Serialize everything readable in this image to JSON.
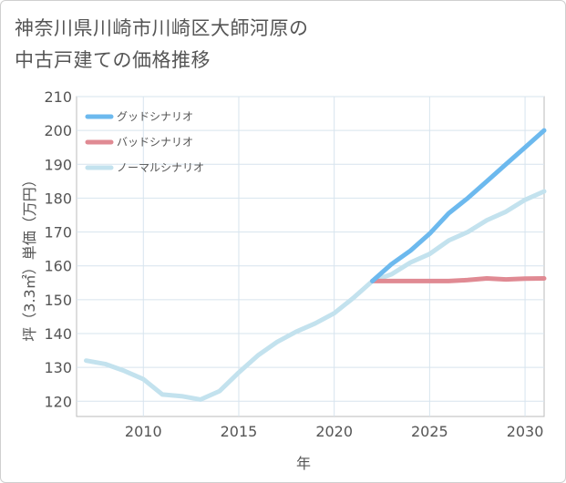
{
  "chart_title_line1": "神奈川県川崎市川崎区大師河原の",
  "chart_title_line2": "中古戸建ての価格推移",
  "chart_data": {
    "type": "line",
    "title": "神奈川県川崎市川崎区大師河原の中古戸建ての価格推移",
    "xlabel": "年",
    "ylabel": "坪（3.3㎡）単価（万円）",
    "xlim": [
      2006.5,
      2031
    ],
    "ylim": [
      115.5,
      210
    ],
    "xticks": [
      2010,
      2015,
      2020,
      2025,
      2030
    ],
    "yticks": [
      120,
      130,
      140,
      150,
      160,
      170,
      180,
      190,
      200,
      210
    ],
    "grid": true,
    "legend_position": "top-left",
    "series": [
      {
        "name": "グッドシナリオ",
        "color": "#6cb9ee",
        "x": [
          2022,
          2023,
          2024,
          2025,
          2026,
          2027,
          2028,
          2029,
          2030,
          2031
        ],
        "values": [
          155.5,
          160.5,
          164.5,
          169.5,
          175.5,
          180,
          185,
          190,
          195,
          200
        ]
      },
      {
        "name": "バッドシナリオ",
        "color": "#e08a93",
        "x": [
          2022,
          2023,
          2024,
          2025,
          2026,
          2027,
          2028,
          2029,
          2030,
          2031
        ],
        "values": [
          155.5,
          155.5,
          155.5,
          155.5,
          155.5,
          155.8,
          156.3,
          156.0,
          156.2,
          156.3
        ]
      },
      {
        "name": "ノーマルシナリオ",
        "color": "#c3e2ee",
        "x": [
          2007,
          2008,
          2009,
          2010,
          2011,
          2012,
          2013,
          2014,
          2015,
          2016,
          2017,
          2018,
          2019,
          2020,
          2021,
          2022,
          2023,
          2024,
          2025,
          2026,
          2027,
          2028,
          2029,
          2030,
          2031
        ],
        "values": [
          132,
          131,
          129,
          126.5,
          122,
          121.5,
          120.5,
          123,
          128.5,
          133.5,
          137.5,
          140.5,
          143,
          146,
          150.5,
          155.5,
          157.5,
          161,
          163.5,
          167.5,
          170,
          173.5,
          176,
          179.5,
          182
        ]
      }
    ]
  }
}
